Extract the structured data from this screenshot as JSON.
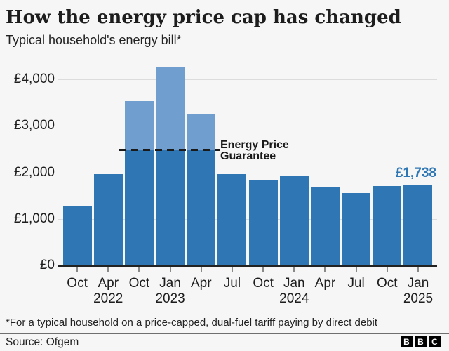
{
  "title": "How the energy price cap has changed",
  "subtitle": "Typical household's energy bill*",
  "footnote": "*For a typical household on a price-capped, dual-fuel tariff paying by direct debit",
  "source": "Source: Ofgem",
  "logo": [
    "B",
    "B",
    "C"
  ],
  "colors": {
    "background": "#f6f6f6",
    "bar": "#2e76b4",
    "bar_above_guarantee": "#6f9ecf",
    "accent_label": "#2e76b4",
    "gridline": "#dcdcdc",
    "axis": "#222222",
    "dashed_line": "#1a1a1a"
  },
  "chart_data": {
    "type": "bar",
    "title": "How the energy price cap has changed",
    "subtitle": "Typical household's energy bill*",
    "categories": [
      "Oct 2021",
      "Apr 2022",
      "Oct 2022",
      "Jan 2023",
      "Apr 2023",
      "Jul 2023",
      "Oct 2023",
      "Jan 2024",
      "Apr 2024",
      "Jul 2024",
      "Oct 2024",
      "Jan 2025"
    ],
    "x_month_labels": [
      "Oct",
      "Apr",
      "Oct",
      "Jan",
      "Apr",
      "Jul",
      "Oct",
      "Jan",
      "Apr",
      "Jul",
      "Oct",
      "Jan"
    ],
    "x_year_labels": [
      "",
      "2022",
      "",
      "2023",
      "",
      "",
      "",
      "2024",
      "",
      "",
      "",
      "2025"
    ],
    "values": [
      1277,
      1971,
      3549,
      4279,
      3280,
      1976,
      1834,
      1928,
      1690,
      1568,
      1717,
      1738
    ],
    "ylim": [
      0,
      4400
    ],
    "yticks": [
      0,
      1000,
      2000,
      3000,
      4000
    ],
    "ytick_labels": [
      "£0",
      "£1,000",
      "£2,000",
      "£3,000",
      "£4,000"
    ],
    "grid": true,
    "legend": "none",
    "guarantee_line": {
      "value": 2500,
      "label_line1": "Energy Price",
      "label_line2": "Guarantee"
    },
    "latest_value_label": "£1,738"
  }
}
